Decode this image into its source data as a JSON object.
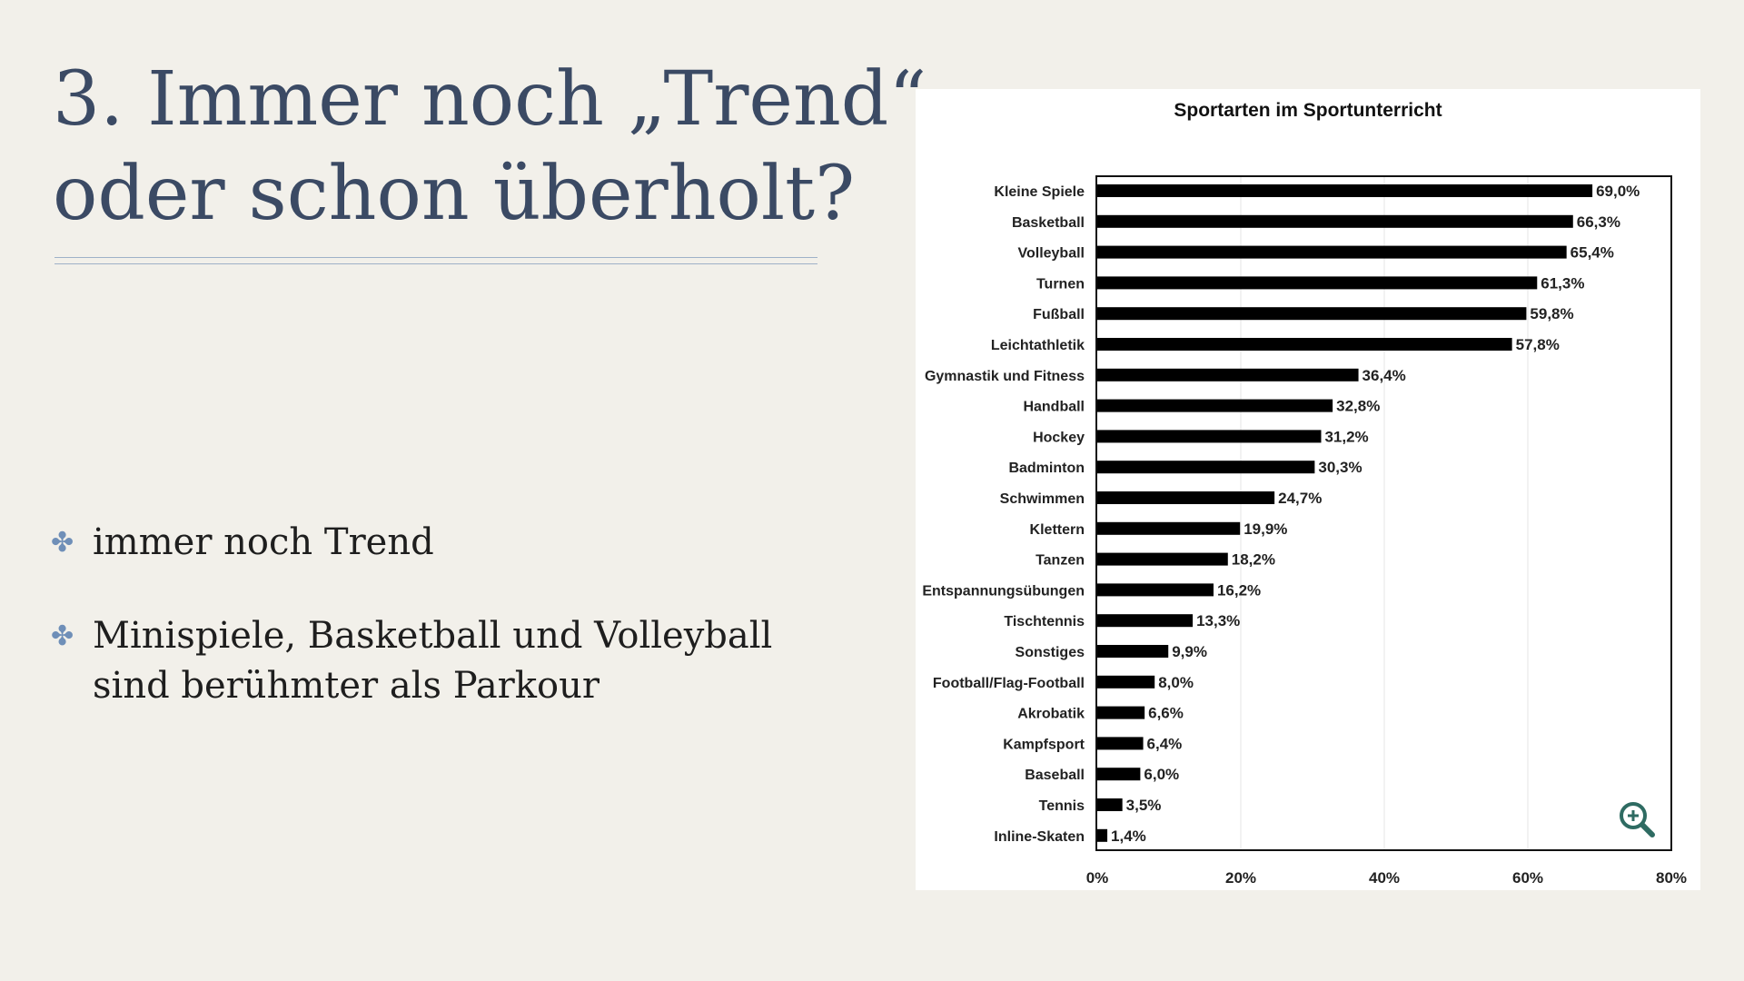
{
  "slide": {
    "title_line1": "3. Immer noch „Trend“,",
    "title_line2": "oder schon überholt?",
    "bullets": [
      {
        "text": "immer noch Trend"
      },
      {
        "text": "Minispiele, Basketball und Volleyball sind berühmter als Parkour"
      }
    ],
    "bullet_icon": "four-petal-flower-icon",
    "colors": {
      "title": "#3b4a64",
      "bullet_icon": "#6f8fb8",
      "background": "#f2f0ea",
      "bar": "#000000"
    }
  },
  "chart_data": {
    "type": "bar",
    "orientation": "horizontal",
    "title": "Sportarten im Sportunterricht",
    "xlabel": "",
    "ylabel": "",
    "xlim": [
      0,
      80
    ],
    "x_ticks": [
      "0%",
      "20%",
      "40%",
      "60%",
      "80%"
    ],
    "grid": true,
    "categories": [
      "Kleine Spiele",
      "Basketball",
      "Volleyball",
      "Turnen",
      "Fußball",
      "Leichtathletik",
      "Gymnastik und Fitness",
      "Handball",
      "Hockey",
      "Badminton",
      "Schwimmen",
      "Klettern",
      "Tanzen",
      "Entspannungsübungen",
      "Tischtennis",
      "Sonstiges",
      "Football/Flag-Football",
      "Akrobatik",
      "Kampfsport",
      "Baseball",
      "Tennis",
      "Inline-Skaten"
    ],
    "values": [
      69.0,
      66.3,
      65.4,
      61.3,
      59.8,
      57.8,
      36.4,
      32.8,
      31.2,
      30.3,
      24.7,
      19.9,
      18.2,
      16.2,
      13.3,
      9.9,
      8.0,
      6.6,
      6.4,
      6.0,
      3.5,
      1.4
    ],
    "value_labels": [
      "69,0%",
      "66,3%",
      "65,4%",
      "61,3%",
      "59,8%",
      "57,8%",
      "36,4%",
      "32,8%",
      "31,2%",
      "30,3%",
      "24,7%",
      "19,9%",
      "18,2%",
      "16,2%",
      "13,3%",
      "9,9%",
      "8,0%",
      "6,6%",
      "6,4%",
      "6,0%",
      "3,5%",
      "1,4%"
    ],
    "zoom_icon": "zoom-in-icon"
  }
}
